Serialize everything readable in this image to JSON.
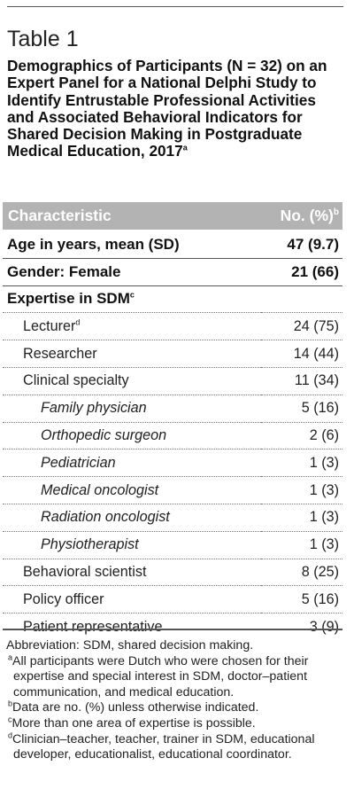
{
  "table": {
    "label": "Table 1",
    "title": "Demographics of Participants (N = 32) on an Expert Panel for a National Delphi Study to Identify Entrustable Professional Activities and Associated Behavioral Indicators for Shared Decision Making in Postgraduate Medical Education, 2017",
    "title_sup": "a",
    "headers": {
      "characteristic": "Characteristic",
      "count": "No. (%)",
      "count_sup": "b"
    },
    "rows": [
      {
        "label": "Age in years, mean (SD)",
        "sup": "",
        "value": "47 (9.7)",
        "level": 0,
        "bold": true,
        "rule": "thick"
      },
      {
        "label": "Gender: Female",
        "sup": "",
        "value": "21 (66)",
        "level": 0,
        "bold": true,
        "rule": "thick"
      },
      {
        "label": "Expertise in SDM",
        "sup": "c",
        "value": "",
        "level": 0,
        "bold": true,
        "rule": "thin"
      },
      {
        "label": "Lecturer",
        "sup": "d",
        "value": "24 (75)",
        "level": 1,
        "bold": false,
        "rule": "thin"
      },
      {
        "label": "Researcher",
        "sup": "",
        "value": "14 (44)",
        "level": 1,
        "bold": false,
        "rule": "thin"
      },
      {
        "label": "Clinical specialty",
        "sup": "",
        "value": "11 (34)",
        "level": 1,
        "bold": false,
        "rule": "thin"
      },
      {
        "label": "Family physician",
        "sup": "",
        "value": "5 (16)",
        "level": 2,
        "bold": false,
        "rule": "thin"
      },
      {
        "label": "Orthopedic surgeon",
        "sup": "",
        "value": "2 (6)",
        "level": 2,
        "bold": false,
        "rule": "thin"
      },
      {
        "label": "Pediatrician",
        "sup": "",
        "value": "1 (3)",
        "level": 2,
        "bold": false,
        "rule": "thin"
      },
      {
        "label": "Medical oncologist",
        "sup": "",
        "value": "1 (3)",
        "level": 2,
        "bold": false,
        "rule": "thin"
      },
      {
        "label": "Radiation oncologist",
        "sup": "",
        "value": "1 (3)",
        "level": 2,
        "bold": false,
        "rule": "thin"
      },
      {
        "label": "Physiotherapist",
        "sup": "",
        "value": "1 (3)",
        "level": 2,
        "bold": false,
        "rule": "thin"
      },
      {
        "label": "Behavioral scientist",
        "sup": "",
        "value": "8 (25)",
        "level": 1,
        "bold": false,
        "rule": "thin"
      },
      {
        "label": "Policy officer",
        "sup": "",
        "value": "5 (16)",
        "level": 1,
        "bold": false,
        "rule": "thin"
      },
      {
        "label": "Patient representative",
        "sup": "",
        "value": "3 (9)",
        "level": 1,
        "bold": false,
        "rule": "none"
      }
    ],
    "footnotes": {
      "abbreviation": "Abbreviation: SDM, shared decision making.",
      "items": [
        {
          "mark": "a",
          "text": "All participants were Dutch who were chosen for their expertise and special interest in SDM, doctor–patient communication, and medical education."
        },
        {
          "mark": "b",
          "text": "Data are no. (%) unless otherwise indicated."
        },
        {
          "mark": "c",
          "text": "More than one area of expertise is possible."
        },
        {
          "mark": "d",
          "text": "Clinician–teacher, teacher, trainer in SDM, educational developer, educationalist, educational coordinator."
        }
      ]
    },
    "colors": {
      "header_bg": "#b3b3b3",
      "header_text": "#ffffff",
      "rule": "#555555"
    }
  }
}
